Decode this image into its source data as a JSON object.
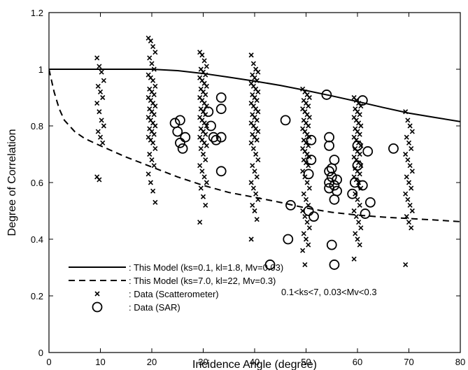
{
  "chart_data": {
    "type": "scatter",
    "title": "",
    "xlabel": "Incidence Angle (degree)",
    "ylabel": "Degree of Correlation",
    "xlim": [
      0,
      80
    ],
    "ylim": [
      0,
      1.2
    ],
    "xticks": [
      "0",
      "10",
      "20",
      "30",
      "40",
      "50",
      "60",
      "70",
      "80"
    ],
    "yticks": [
      "0",
      "0.2",
      "0.4",
      "0.6",
      "0.8",
      "1",
      "1.2"
    ],
    "grid": false,
    "legend_position": "bottom-left",
    "legend": [
      {
        "label": ": This Model (ks=0.1, kl=1.8, Mv=0.03)",
        "style": "solid-line"
      },
      {
        "label": ": This Model (ks=7.0, kl=22, Mv=0.3)",
        "style": "dashed-line"
      },
      {
        "label": ": Data (Scatterometer)",
        "style": "x-marker"
      },
      {
        "label": ": Data (SAR)",
        "style": "circle-marker"
      }
    ],
    "annotation": "0.1<ks<7, 0.03<Mv<0.3",
    "series": [
      {
        "name": ": This Model (ks=0.1, kl=1.8, Mv=0.03)",
        "kind": "line",
        "x": [
          0,
          10,
          20,
          25,
          30,
          35,
          40,
          45,
          50,
          55,
          60,
          65,
          70,
          75,
          80
        ],
        "y": [
          1.0,
          1.0,
          1.0,
          0.995,
          0.985,
          0.972,
          0.958,
          0.943,
          0.925,
          0.906,
          0.886,
          0.865,
          0.845,
          0.83,
          0.815
        ]
      },
      {
        "name": ": This Model (ks=7.0, kl=22, Mv=0.3)",
        "kind": "line",
        "x": [
          0,
          0.5,
          1,
          2,
          3,
          5,
          7,
          10,
          15,
          20,
          25,
          30,
          35,
          40,
          45,
          50,
          55,
          60,
          65,
          70,
          75,
          80
        ],
        "y": [
          1.0,
          0.96,
          0.92,
          0.86,
          0.82,
          0.78,
          0.755,
          0.73,
          0.69,
          0.655,
          0.62,
          0.59,
          0.565,
          0.548,
          0.53,
          0.51,
          0.495,
          0.485,
          0.478,
          0.473,
          0.468,
          0.462
        ]
      },
      {
        "name": ": Data (Scatterometer)",
        "kind": "markers",
        "marker": "x",
        "groups": [
          {
            "x": 10,
            "y": [
              1.04,
              1.01,
              0.99,
              0.96,
              0.94,
              0.92,
              0.9,
              0.88,
              0.85,
              0.82,
              0.8,
              0.78,
              0.76,
              0.74,
              0.62,
              0.61
            ]
          },
          {
            "x": 20,
            "y": [
              1.11,
              1.1,
              1.08,
              1.06,
              1.04,
              1.02,
              1.0,
              0.98,
              0.97,
              0.96,
              0.94,
              0.93,
              0.92,
              0.91,
              0.9,
              0.89,
              0.88,
              0.87,
              0.86,
              0.85,
              0.84,
              0.83,
              0.82,
              0.81,
              0.8,
              0.79,
              0.78,
              0.77,
              0.76,
              0.75,
              0.74,
              0.72,
              0.7,
              0.68,
              0.66,
              0.63,
              0.6,
              0.57,
              0.53
            ]
          },
          {
            "x": 30,
            "y": [
              1.06,
              1.05,
              1.03,
              1.01,
              1.0,
              0.99,
              0.98,
              0.97,
              0.96,
              0.95,
              0.94,
              0.93,
              0.92,
              0.91,
              0.9,
              0.89,
              0.88,
              0.87,
              0.86,
              0.85,
              0.84,
              0.83,
              0.82,
              0.81,
              0.8,
              0.79,
              0.78,
              0.77,
              0.76,
              0.75,
              0.74,
              0.73,
              0.72,
              0.7,
              0.68,
              0.66,
              0.64,
              0.62,
              0.6,
              0.58,
              0.55,
              0.52,
              0.46
            ]
          },
          {
            "x": 40,
            "y": [
              1.05,
              1.02,
              1.0,
              0.99,
              0.98,
              0.97,
              0.96,
              0.95,
              0.94,
              0.93,
              0.92,
              0.91,
              0.9,
              0.89,
              0.88,
              0.87,
              0.86,
              0.85,
              0.84,
              0.83,
              0.82,
              0.81,
              0.8,
              0.79,
              0.78,
              0.77,
              0.76,
              0.75,
              0.74,
              0.72,
              0.7,
              0.68,
              0.66,
              0.64,
              0.62,
              0.6,
              0.58,
              0.56,
              0.54,
              0.52,
              0.5,
              0.47,
              0.4
            ]
          },
          {
            "x": 50,
            "y": [
              0.93,
              0.92,
              0.91,
              0.9,
              0.89,
              0.88,
              0.87,
              0.86,
              0.85,
              0.84,
              0.83,
              0.82,
              0.81,
              0.8,
              0.79,
              0.78,
              0.77,
              0.76,
              0.75,
              0.74,
              0.73,
              0.72,
              0.71,
              0.7,
              0.69,
              0.68,
              0.67,
              0.66,
              0.64,
              0.62,
              0.6,
              0.58,
              0.56,
              0.54,
              0.52,
              0.5,
              0.48,
              0.46,
              0.44,
              0.42,
              0.4,
              0.38,
              0.36,
              0.31
            ]
          },
          {
            "x": 60,
            "y": [
              0.9,
              0.89,
              0.88,
              0.87,
              0.86,
              0.85,
              0.84,
              0.83,
              0.82,
              0.81,
              0.8,
              0.79,
              0.78,
              0.77,
              0.76,
              0.75,
              0.74,
              0.73,
              0.72,
              0.71,
              0.7,
              0.69,
              0.68,
              0.67,
              0.66,
              0.65,
              0.64,
              0.63,
              0.62,
              0.61,
              0.6,
              0.58,
              0.56,
              0.54,
              0.52,
              0.5,
              0.48,
              0.46,
              0.44,
              0.42,
              0.4,
              0.38,
              0.33
            ]
          },
          {
            "x": 70,
            "y": [
              0.85,
              0.82,
              0.8,
              0.78,
              0.76,
              0.74,
              0.72,
              0.7,
              0.68,
              0.66,
              0.64,
              0.62,
              0.6,
              0.58,
              0.56,
              0.54,
              0.52,
              0.5,
              0.48,
              0.46,
              0.44,
              0.31
            ]
          }
        ]
      },
      {
        "name": ": Data (SAR)",
        "kind": "markers",
        "marker": "circle",
        "points": [
          [
            24.5,
            0.81
          ],
          [
            25,
            0.78
          ],
          [
            25.5,
            0.82
          ],
          [
            25.5,
            0.74
          ],
          [
            26,
            0.72
          ],
          [
            26.5,
            0.76
          ],
          [
            31,
            0.85
          ],
          [
            31.5,
            0.8
          ],
          [
            32,
            0.76
          ],
          [
            32.5,
            0.75
          ],
          [
            33.5,
            0.9
          ],
          [
            33.5,
            0.86
          ],
          [
            33.5,
            0.76
          ],
          [
            33.5,
            0.64
          ],
          [
            43,
            0.31
          ],
          [
            46,
            0.82
          ],
          [
            47,
            0.52
          ],
          [
            46.5,
            0.4
          ],
          [
            50.5,
            0.5
          ],
          [
            50.5,
            0.63
          ],
          [
            51,
            0.75
          ],
          [
            51,
            0.68
          ],
          [
            51.5,
            0.48
          ],
          [
            54,
            0.91
          ],
          [
            54.5,
            0.76
          ],
          [
            54.5,
            0.73
          ],
          [
            54.5,
            0.64
          ],
          [
            54.5,
            0.6
          ],
          [
            54.5,
            0.58
          ],
          [
            55,
            0.65
          ],
          [
            55,
            0.62
          ],
          [
            55.5,
            0.68
          ],
          [
            55.5,
            0.59
          ],
          [
            55.5,
            0.54
          ],
          [
            56,
            0.61
          ],
          [
            56,
            0.57
          ],
          [
            55,
            0.38
          ],
          [
            55.5,
            0.31
          ],
          [
            59,
            0.56
          ],
          [
            59.5,
            0.6
          ],
          [
            60,
            0.66
          ],
          [
            60,
            0.73
          ],
          [
            61,
            0.89
          ],
          [
            61,
            0.59
          ],
          [
            61.5,
            0.49
          ],
          [
            62,
            0.71
          ],
          [
            62.5,
            0.53
          ],
          [
            67,
            0.72
          ]
        ]
      }
    ]
  }
}
